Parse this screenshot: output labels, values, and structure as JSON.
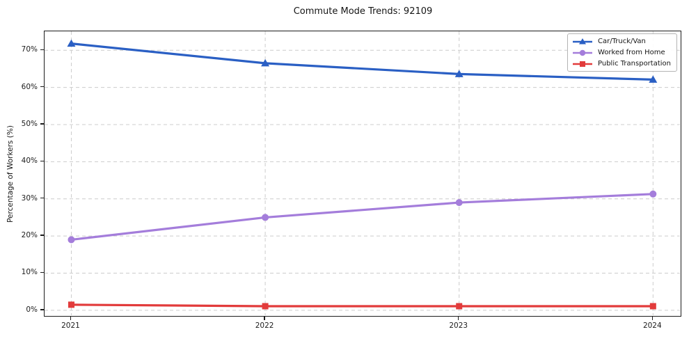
{
  "title": "Commute Mode Trends: 92109",
  "chart_data": {
    "type": "line",
    "title": "Commute Mode Trends: 92109",
    "xlabel": "",
    "ylabel": "Percentage of Workers (%)",
    "x": [
      2021,
      2022,
      2023,
      2024
    ],
    "x_tick_labels": [
      "2021",
      "2022",
      "2023",
      "2024"
    ],
    "y_ticks": [
      0,
      10,
      20,
      30,
      40,
      50,
      60,
      70
    ],
    "y_tick_labels": [
      "0%",
      "10%",
      "20%",
      "30%",
      "40%",
      "50%",
      "60%",
      "70%"
    ],
    "ylim": [
      -1.9,
      75.1
    ],
    "grid": "both-dashed",
    "grid_color": "#cccccc",
    "spine_color": "#1b1b1b",
    "legend_position": "upper-right",
    "series": [
      {
        "name": "Car/Truck/Van",
        "color": "#2a5fc4",
        "marker": "triangle",
        "values": [
          71.8,
          66.5,
          63.6,
          62.1
        ]
      },
      {
        "name": "Worked from Home",
        "color": "#a47ddb",
        "marker": "circle",
        "values": [
          19.0,
          25.0,
          29.0,
          31.3
        ]
      },
      {
        "name": "Public Transportation",
        "color": "#e23b3b",
        "marker": "square",
        "values": [
          1.5,
          1.1,
          1.1,
          1.1
        ]
      }
    ]
  }
}
